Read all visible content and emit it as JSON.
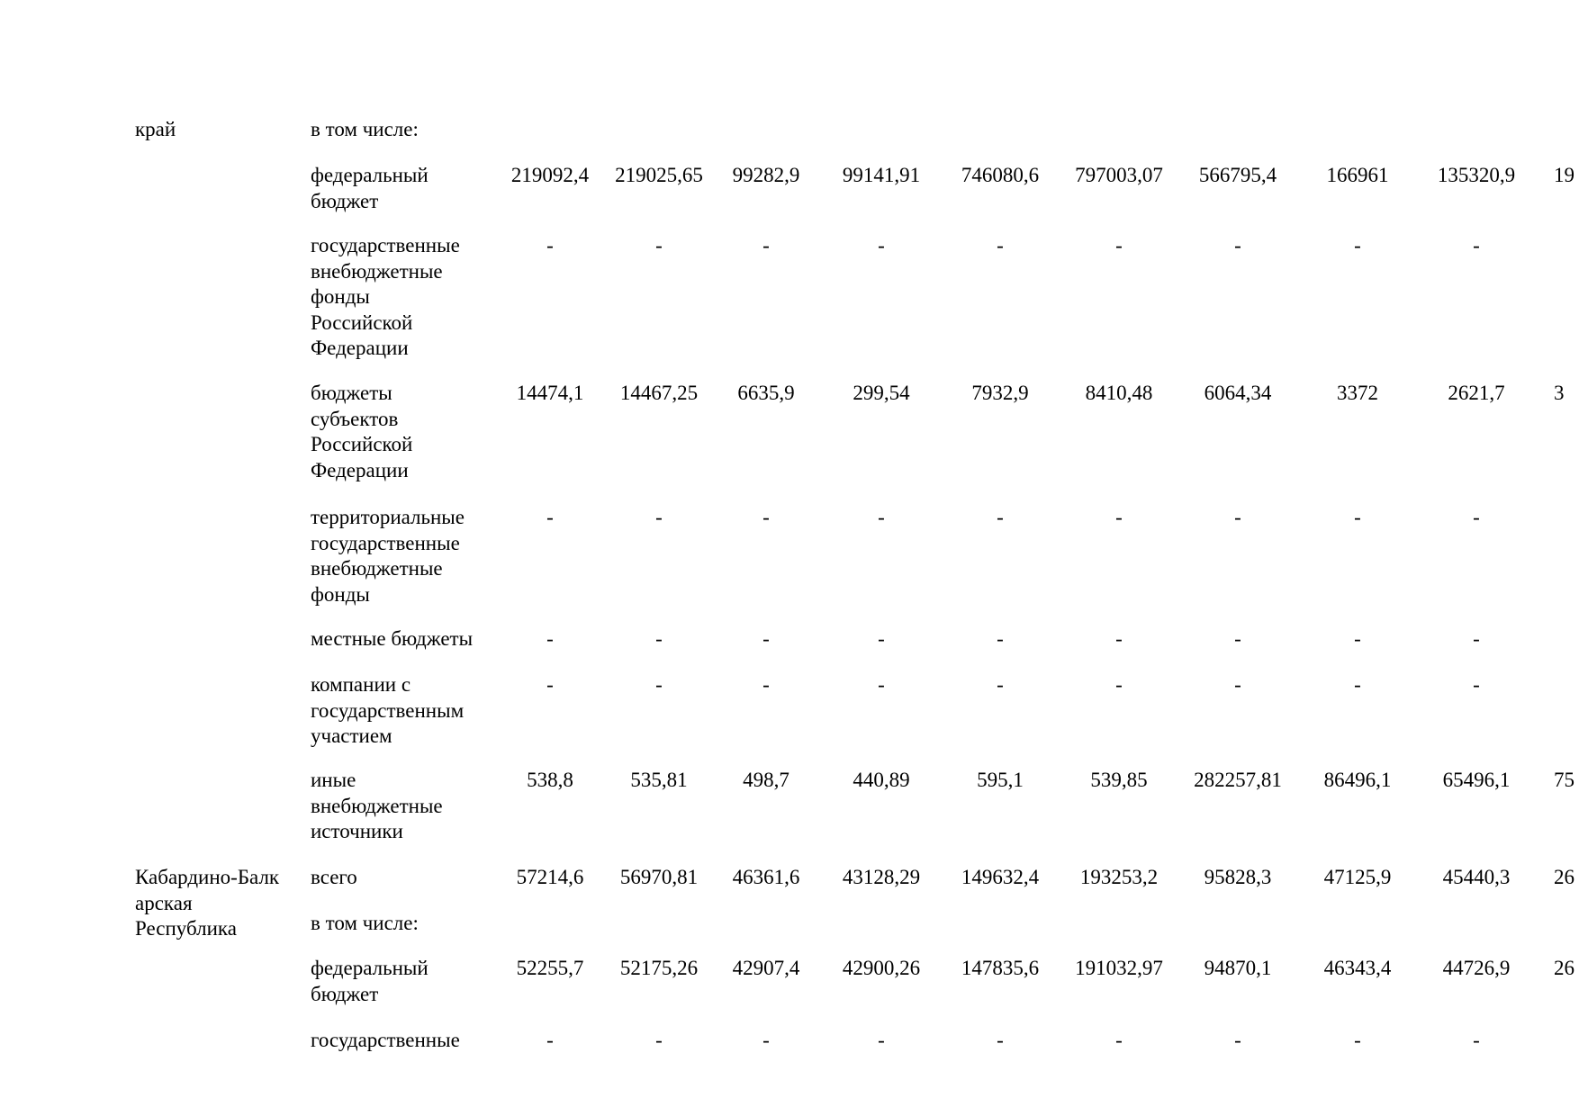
{
  "rows": [
    {
      "region": "край",
      "label": "в том числе:",
      "values": []
    },
    {
      "region": "",
      "label": "федеральный\nбюджет",
      "values": [
        "219092,4",
        "219025,65",
        "99282,9",
        "99141,91",
        "746080,6",
        "797003,07",
        "566795,4",
        "166961",
        "135320,9",
        "19"
      ]
    },
    {
      "region": "",
      "label": "государственные\nвнебюджетные\nфонды\nРоссийской\nФедерации",
      "values": [
        "-",
        "-",
        "-",
        "-",
        "-",
        "-",
        "-",
        "-",
        "-",
        ""
      ]
    },
    {
      "region": "",
      "label": "бюджеты\nсубъектов\nРоссийской\nФедерации",
      "values": [
        "14474,1",
        "14467,25",
        "6635,9",
        "299,54",
        "7932,9",
        "8410,48",
        "6064,34",
        "3372",
        "2621,7",
        "3"
      ]
    },
    {
      "region": "",
      "label": "территориальные\nгосударственные\nвнебюджетные\nфонды",
      "values": [
        "-",
        "-",
        "-",
        "-",
        "-",
        "-",
        "-",
        "-",
        "-",
        ""
      ]
    },
    {
      "region": "",
      "label": "местные бюджеты",
      "values": [
        "-",
        "-",
        "-",
        "-",
        "-",
        "-",
        "-",
        "-",
        "-",
        ""
      ]
    },
    {
      "region": "",
      "label": "компании с\nгосударственным\nучастием",
      "values": [
        "-",
        "-",
        "-",
        "-",
        "-",
        "-",
        "-",
        "-",
        "-",
        ""
      ]
    },
    {
      "region": "",
      "label": "иные\nвнебюджетные\nисточники",
      "values": [
        "538,8",
        "535,81",
        "498,7",
        "440,89",
        "595,1",
        "539,85",
        "282257,81",
        "86496,1",
        "65496,1",
        "75"
      ]
    },
    {
      "region": "Кабардино-Балк\nарская\nРеспублика",
      "label": "всего",
      "values": [
        "57214,6",
        "56970,81",
        "46361,6",
        "43128,29",
        "149632,4",
        "193253,2",
        "95828,3",
        "47125,9",
        "45440,3",
        "26"
      ]
    },
    {
      "region": "",
      "label": "в том числе:",
      "values": []
    },
    {
      "region": "",
      "label": "федеральный\nбюджет",
      "values": [
        "52255,7",
        "52175,26",
        "42907,4",
        "42900,26",
        "147835,6",
        "191032,97",
        "94870,1",
        "46343,4",
        "44726,9",
        "26"
      ]
    },
    {
      "region": "",
      "label": "государственные",
      "values": [
        "-",
        "-",
        "-",
        "-",
        "-",
        "-",
        "-",
        "-",
        "-",
        ""
      ]
    }
  ]
}
